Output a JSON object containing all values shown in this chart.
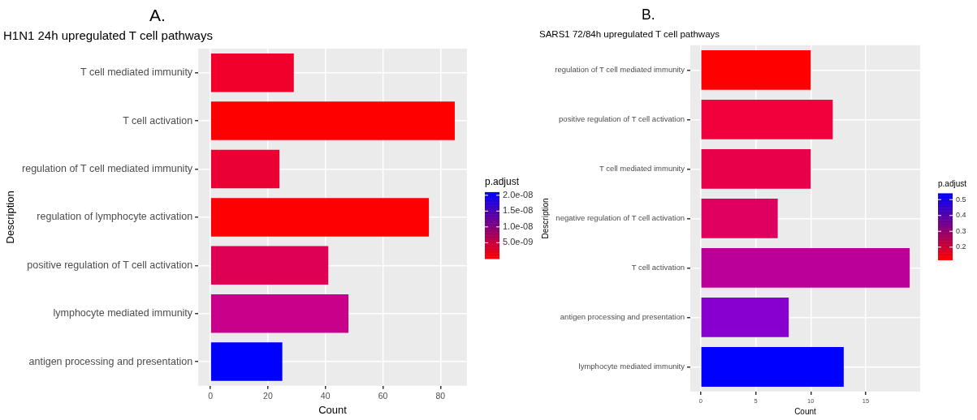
{
  "chart_data": [
    {
      "type": "bar",
      "orientation": "horizontal",
      "title": "H1N1 24h upregulated T cell pathways",
      "xlabel": "Count",
      "ylabel": "Description",
      "annotations": [
        "A."
      ],
      "categories": [
        "T cell mediated immunity",
        "T cell activation",
        "regulation of T cell mediated immunity",
        "regulation of lymphocyte activation",
        "positive regulation of T cell activation",
        "lymphocyte mediated immunity",
        "antigen processing and presentation"
      ],
      "values": [
        29,
        85,
        24,
        76,
        41,
        48,
        25
      ],
      "colors": [
        "#f0002a",
        "#ff0000",
        "#ea0033",
        "#fe0002",
        "#dd0055",
        "#c8008a",
        "#0000ff"
      ],
      "xlim": [
        -4.25,
        89.25
      ],
      "xticks": [
        0,
        20,
        40,
        60,
        80
      ],
      "grid": true,
      "legend": false,
      "clabel": "p.adjust",
      "clim": [
        0,
        2.1e-08
      ],
      "cticks": [
        {
          "value": 2e-08,
          "label": "2.0e-08"
        },
        {
          "value": 1.5e-08,
          "label": "1.5e-08"
        },
        {
          "value": 1e-08,
          "label": "1.0e-08"
        },
        {
          "value": 5e-09,
          "label": "5.0e-09"
        }
      ]
    },
    {
      "type": "bar",
      "orientation": "horizontal",
      "title": "SARS1 72/84h upregulated T cell pathways",
      "xlabel": "Count",
      "ylabel": "Description",
      "annotations": [
        "B."
      ],
      "categories": [
        "regulation of T cell mediated immunity",
        "positive regulation of T cell activation",
        "T cell mediated immunity",
        "negative regulation of T cell activation",
        "T cell activation",
        "antigen processing and presentation",
        "lymphocyte mediated immunity"
      ],
      "values": [
        10,
        12,
        10,
        7,
        19,
        8,
        13
      ],
      "colors": [
        "#ff0000",
        "#f2003b",
        "#e8004a",
        "#dd0060",
        "#bb0099",
        "#8800d0",
        "#0000ff"
      ],
      "xlim": [
        -0.95,
        19.95
      ],
      "xticks": [
        0,
        5,
        10,
        15
      ],
      "grid": true,
      "legend": false,
      "clabel": "p.adjust",
      "clim": [
        0.12,
        0.54
      ],
      "cticks": [
        0.5,
        0.4,
        0.3,
        0.2
      ]
    }
  ]
}
